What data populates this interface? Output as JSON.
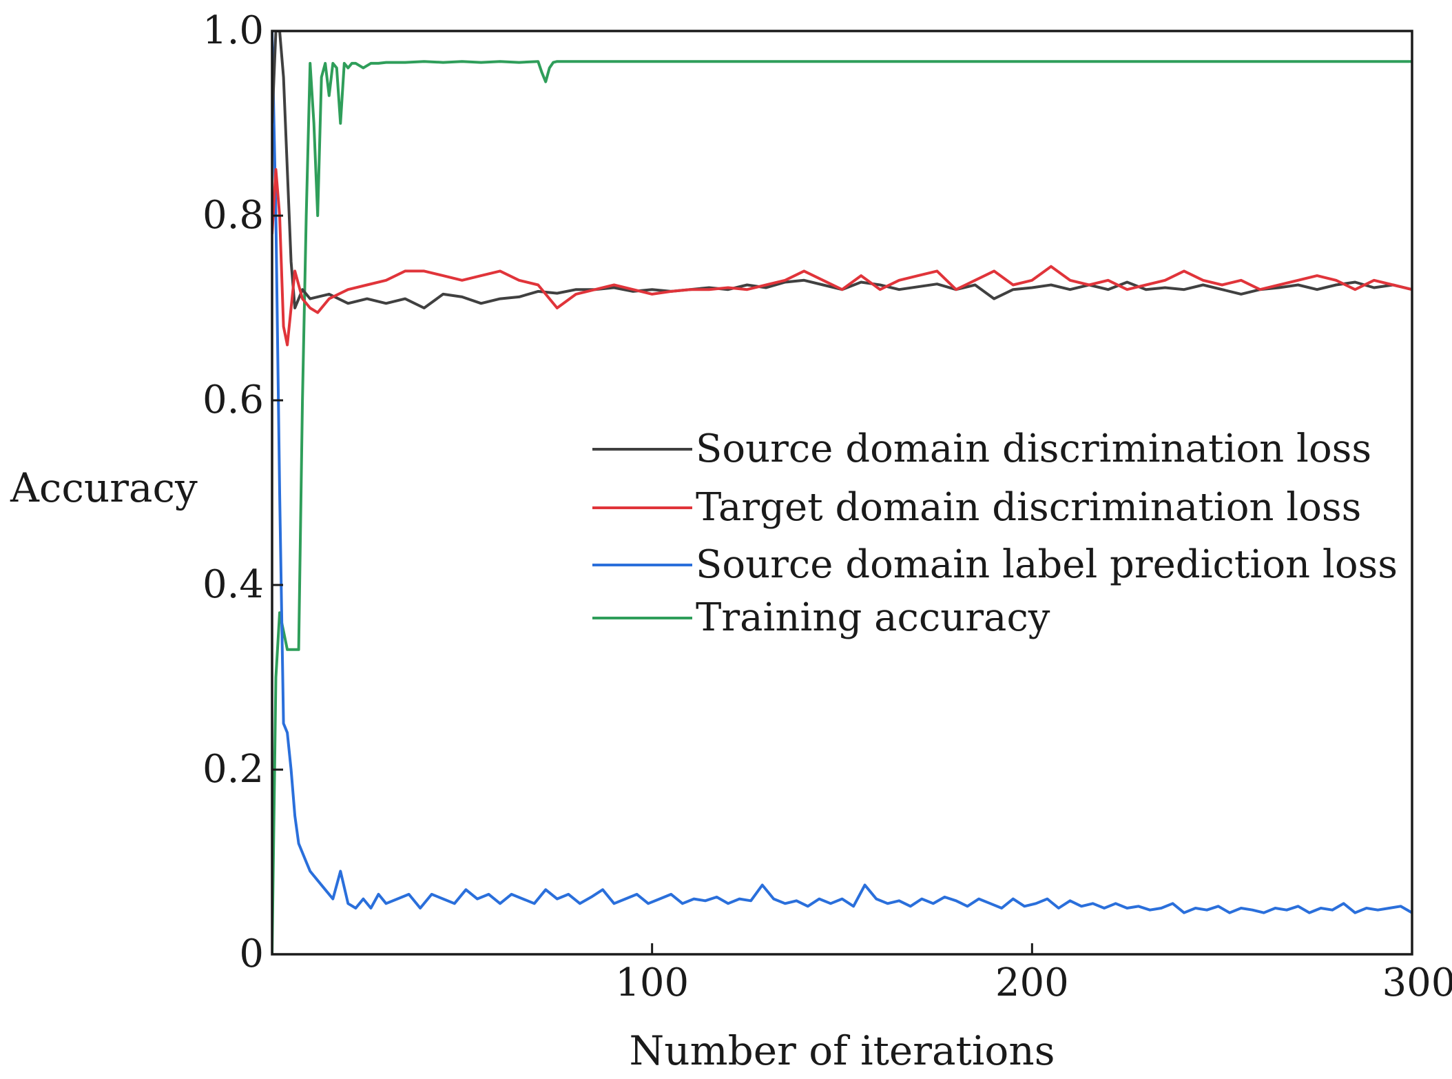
{
  "chart_data": {
    "type": "line",
    "xlabel": "Number of iterations",
    "ylabel": "Accuracy",
    "xlim": [
      0,
      300
    ],
    "ylim": [
      0,
      1.0
    ],
    "x_ticks": [
      100,
      200,
      300
    ],
    "x_tick_labels": [
      "100",
      "200",
      "300"
    ],
    "y_ticks": [
      0,
      0.2,
      0.4,
      0.6,
      0.8,
      1.0
    ],
    "y_tick_labels": [
      "0",
      "0.2",
      "0.4",
      "0.6",
      "0.8",
      "1.0"
    ],
    "grid": false,
    "legend_position": "center-right",
    "series": [
      {
        "name": "Source domain discrimination loss",
        "color": "#404040",
        "x": [
          0,
          1,
          2,
          3,
          4,
          5,
          6,
          8,
          10,
          15,
          20,
          25,
          30,
          35,
          40,
          45,
          50,
          55,
          60,
          65,
          70,
          75,
          80,
          85,
          90,
          95,
          100,
          105,
          110,
          115,
          120,
          125,
          130,
          135,
          140,
          145,
          150,
          155,
          160,
          165,
          170,
          175,
          180,
          185,
          190,
          195,
          200,
          205,
          210,
          215,
          220,
          225,
          230,
          235,
          240,
          245,
          250,
          255,
          260,
          265,
          270,
          275,
          280,
          285,
          290,
          295,
          300
        ],
        "y": [
          0.9,
          1.0,
          1.0,
          0.95,
          0.85,
          0.75,
          0.7,
          0.72,
          0.71,
          0.715,
          0.705,
          0.71,
          0.705,
          0.71,
          0.7,
          0.715,
          0.712,
          0.705,
          0.71,
          0.712,
          0.718,
          0.716,
          0.72,
          0.72,
          0.722,
          0.718,
          0.72,
          0.718,
          0.72,
          0.722,
          0.72,
          0.725,
          0.722,
          0.728,
          0.73,
          0.725,
          0.72,
          0.728,
          0.725,
          0.72,
          0.723,
          0.726,
          0.72,
          0.725,
          0.71,
          0.72,
          0.722,
          0.725,
          0.72,
          0.725,
          0.72,
          0.728,
          0.72,
          0.722,
          0.72,
          0.725,
          0.72,
          0.715,
          0.72,
          0.722,
          0.725,
          0.72,
          0.725,
          0.728,
          0.722,
          0.725,
          0.72
        ]
      },
      {
        "name": "Target domain discrimination loss",
        "color": "#e0343a",
        "x": [
          0,
          1,
          2,
          3,
          4,
          5,
          6,
          8,
          10,
          12,
          15,
          20,
          25,
          30,
          35,
          40,
          45,
          50,
          55,
          60,
          65,
          70,
          75,
          80,
          85,
          90,
          95,
          100,
          105,
          110,
          115,
          120,
          125,
          130,
          135,
          140,
          145,
          150,
          155,
          160,
          165,
          170,
          175,
          180,
          185,
          190,
          195,
          200,
          205,
          210,
          215,
          220,
          225,
          230,
          235,
          240,
          245,
          250,
          255,
          260,
          265,
          270,
          275,
          280,
          285,
          290,
          295,
          300
        ],
        "y": [
          0.78,
          0.85,
          0.8,
          0.68,
          0.66,
          0.7,
          0.74,
          0.71,
          0.7,
          0.695,
          0.71,
          0.72,
          0.725,
          0.73,
          0.74,
          0.74,
          0.735,
          0.73,
          0.735,
          0.74,
          0.73,
          0.725,
          0.7,
          0.715,
          0.72,
          0.725,
          0.72,
          0.715,
          0.718,
          0.72,
          0.72,
          0.722,
          0.72,
          0.725,
          0.73,
          0.74,
          0.73,
          0.72,
          0.735,
          0.72,
          0.73,
          0.735,
          0.74,
          0.72,
          0.73,
          0.74,
          0.725,
          0.73,
          0.745,
          0.73,
          0.725,
          0.73,
          0.72,
          0.725,
          0.73,
          0.74,
          0.73,
          0.725,
          0.73,
          0.72,
          0.725,
          0.73,
          0.735,
          0.73,
          0.72,
          0.73,
          0.725,
          0.72
        ]
      },
      {
        "name": "Source domain label prediction loss",
        "color": "#2a6fdb",
        "x": [
          0,
          1,
          2,
          3,
          4,
          5,
          6,
          7,
          8,
          9,
          10,
          12,
          14,
          16,
          18,
          20,
          22,
          24,
          26,
          28,
          30,
          33,
          36,
          39,
          42,
          45,
          48,
          51,
          54,
          57,
          60,
          63,
          66,
          69,
          72,
          75,
          78,
          81,
          84,
          87,
          90,
          93,
          96,
          99,
          102,
          105,
          108,
          111,
          114,
          117,
          120,
          123,
          126,
          129,
          132,
          135,
          138,
          141,
          144,
          147,
          150,
          153,
          156,
          159,
          162,
          165,
          168,
          171,
          174,
          177,
          180,
          183,
          186,
          189,
          192,
          195,
          198,
          201,
          204,
          207,
          210,
          213,
          216,
          219,
          222,
          225,
          228,
          231,
          234,
          237,
          240,
          243,
          246,
          249,
          252,
          255,
          258,
          261,
          264,
          267,
          270,
          273,
          276,
          279,
          282,
          285,
          288,
          291,
          294,
          297,
          300
        ],
        "y": [
          1.0,
          0.8,
          0.5,
          0.25,
          0.24,
          0.2,
          0.15,
          0.12,
          0.11,
          0.1,
          0.09,
          0.08,
          0.07,
          0.06,
          0.09,
          0.055,
          0.05,
          0.06,
          0.05,
          0.065,
          0.055,
          0.06,
          0.065,
          0.05,
          0.065,
          0.06,
          0.055,
          0.07,
          0.06,
          0.065,
          0.055,
          0.065,
          0.06,
          0.055,
          0.07,
          0.06,
          0.065,
          0.055,
          0.062,
          0.07,
          0.055,
          0.06,
          0.065,
          0.055,
          0.06,
          0.065,
          0.055,
          0.06,
          0.058,
          0.062,
          0.055,
          0.06,
          0.058,
          0.075,
          0.06,
          0.055,
          0.058,
          0.052,
          0.06,
          0.055,
          0.06,
          0.052,
          0.075,
          0.06,
          0.055,
          0.058,
          0.052,
          0.06,
          0.055,
          0.062,
          0.058,
          0.052,
          0.06,
          0.055,
          0.05,
          0.06,
          0.052,
          0.055,
          0.06,
          0.05,
          0.058,
          0.052,
          0.055,
          0.05,
          0.055,
          0.05,
          0.052,
          0.048,
          0.05,
          0.055,
          0.045,
          0.05,
          0.048,
          0.052,
          0.045,
          0.05,
          0.048,
          0.045,
          0.05,
          0.048,
          0.052,
          0.045,
          0.05,
          0.048,
          0.055,
          0.045,
          0.05,
          0.048,
          0.05,
          0.052,
          0.045
        ]
      },
      {
        "name": "Training accuracy",
        "color": "#2f9e5a",
        "x": [
          0,
          1,
          2,
          3,
          4,
          5,
          6,
          7,
          8,
          9,
          10,
          11,
          12,
          13,
          14,
          15,
          16,
          17,
          18,
          19,
          20,
          21,
          22,
          24,
          26,
          28,
          30,
          35,
          40,
          45,
          50,
          55,
          60,
          65,
          70,
          71,
          72,
          73,
          74,
          75,
          80,
          90,
          100,
          120,
          140,
          160,
          180,
          200,
          220,
          240,
          260,
          280,
          300
        ],
        "y": [
          0.0,
          0.3,
          0.37,
          0.35,
          0.33,
          0.33,
          0.33,
          0.33,
          0.6,
          0.8,
          0.965,
          0.9,
          0.8,
          0.95,
          0.965,
          0.93,
          0.965,
          0.96,
          0.9,
          0.965,
          0.96,
          0.965,
          0.965,
          0.96,
          0.965,
          0.965,
          0.966,
          0.966,
          0.967,
          0.966,
          0.967,
          0.966,
          0.967,
          0.966,
          0.967,
          0.955,
          0.945,
          0.96,
          0.966,
          0.967,
          0.967,
          0.967,
          0.967,
          0.967,
          0.967,
          0.967,
          0.967,
          0.967,
          0.967,
          0.967,
          0.967,
          0.967,
          0.967
        ]
      }
    ]
  }
}
